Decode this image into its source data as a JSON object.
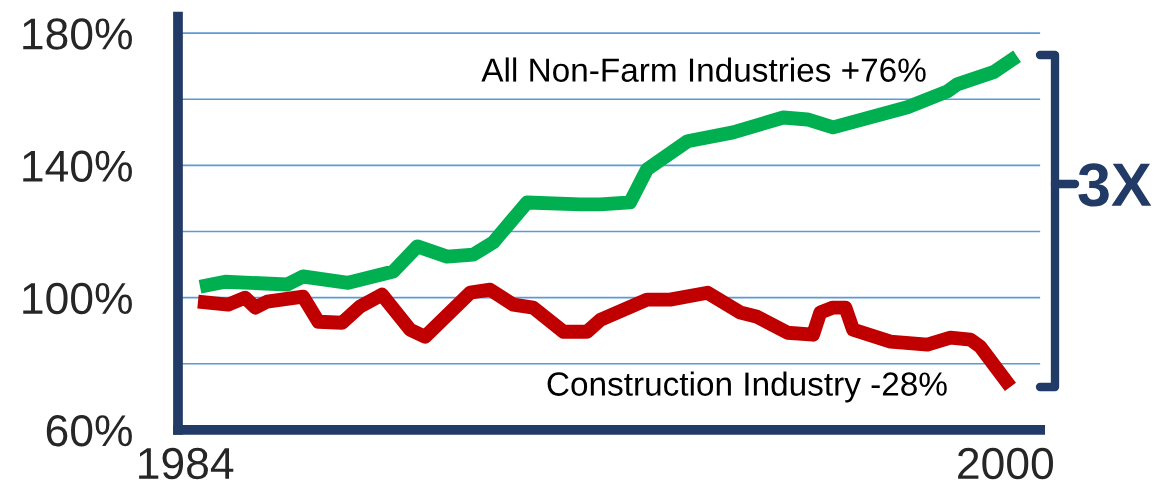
{
  "chart_data": {
    "type": "line",
    "x": [
      1984.29,
      1984.78,
      1985.99,
      1986.3,
      1987.18,
      1988.06,
      1988.53,
      1989.11,
      1989.62,
      1990.01,
      1990.67,
      1991.71,
      1992.1,
      1992.68,
      1993.01,
      1993.8,
      1994.69,
      1995.67,
      1996.14,
      1996.64,
      1998.09,
      1998.87,
      1999.06,
      1999.77,
      2000.23
    ],
    "series": [
      {
        "name": "All Non-Farm Industries +76%",
        "color": "#00b050",
        "values": [
          103.3,
          104.8,
          104,
          106.4,
          104.5,
          107.9,
          115.5,
          112.4,
          113,
          116.7,
          128.8,
          128.2,
          128.2,
          128.8,
          138.8,
          147.3,
          150,
          154.5,
          153.9,
          151.5,
          157.6,
          162.4,
          164.5,
          168.2,
          173
        ]
      },
      {
        "name": "Construction Industry -28%",
        "color": "#c00000",
        "x": [
          1984.25,
          1984.84,
          1985.17,
          1985.37,
          1985.6,
          1986.3,
          1986.6,
          1987.06,
          1987.41,
          1987.84,
          1988.39,
          1988.68,
          1989.56,
          1989.95,
          1990.4,
          1990.79,
          1991.38,
          1991.84,
          1992.1,
          1993.01,
          1993.46,
          1994.19,
          1994.83,
          1995.16,
          1995.75,
          1996.25,
          1996.39,
          1996.64,
          1996.88,
          1997.03,
          1997.76,
          1998.48,
          1998.93,
          1999.32,
          1999.51,
          2000.1
        ],
        "values": [
          98.8,
          97.9,
          100,
          97,
          98.8,
          100.3,
          92.7,
          92.4,
          97.3,
          100.9,
          90.3,
          88.2,
          101.5,
          102.4,
          97.9,
          97,
          89.7,
          89.7,
          93.3,
          99.4,
          99.4,
          101.5,
          95.5,
          94.2,
          89.4,
          88.8,
          95.5,
          97,
          97,
          90.3,
          86.7,
          85.8,
          87.9,
          87.3,
          85.2,
          73
        ]
      }
    ],
    "xlim": [
      1983.86,
      2000.68
    ],
    "xticks": [
      1984,
      2000
    ],
    "ylim": [
      60,
      185
    ],
    "yticks": [
      {
        "value": 60,
        "label": "60%"
      },
      {
        "value": 80,
        "label": null
      },
      {
        "value": 100,
        "label": "100%"
      },
      {
        "value": 120,
        "label": null
      },
      {
        "value": 140,
        "label": "140%"
      },
      {
        "value": 160,
        "label": null
      },
      {
        "value": 180,
        "label": "180%"
      }
    ],
    "grid": "y",
    "legend": false,
    "marker": "none",
    "line_style": "solid",
    "annotations": [
      "3X"
    ]
  }
}
